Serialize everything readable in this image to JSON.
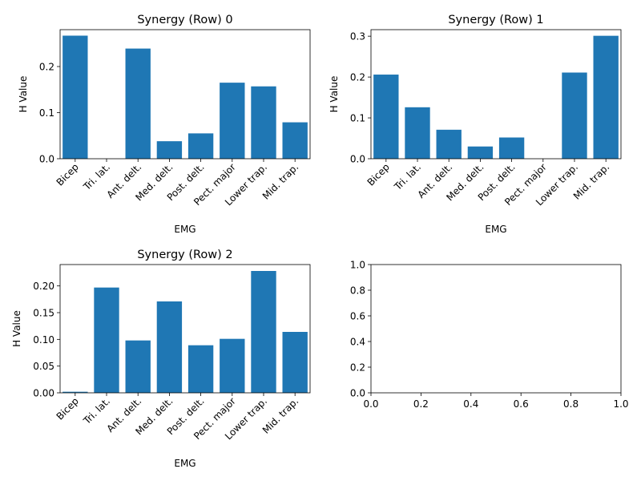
{
  "colors": {
    "bar": "#1f77b4",
    "axes": "#000000",
    "background": "#ffffff"
  },
  "chart_data": [
    {
      "type": "bar",
      "title": "Synergy (Row) 0",
      "xlabel": "EMG",
      "ylabel": "H Value",
      "categories": [
        "Bicep",
        "Tri. lat.",
        "Ant. delt.",
        "Med. delt.",
        "Post. delt.",
        "Pect. major",
        "Lower trap.",
        "Mid. trap."
      ],
      "values": [
        0.267,
        0.0,
        0.239,
        0.038,
        0.055,
        0.165,
        0.157,
        0.079
      ],
      "ylim": [
        0,
        0.28
      ],
      "yticks": [
        0.0,
        0.1,
        0.2
      ],
      "ytick_labels": [
        "0.0",
        "0.1",
        "0.2"
      ],
      "grid": false
    },
    {
      "type": "bar",
      "title": "Synergy (Row) 1",
      "xlabel": "EMG",
      "ylabel": "H Value",
      "categories": [
        "Bicep",
        "Tri. lat.",
        "Ant. delt.",
        "Med. delt.",
        "Post. delt.",
        "Pect. major",
        "Lower trap.",
        "Mid. trap."
      ],
      "values": [
        0.206,
        0.126,
        0.071,
        0.03,
        0.052,
        0.0,
        0.211,
        0.301
      ],
      "ylim": [
        0,
        0.316
      ],
      "yticks": [
        0.0,
        0.1,
        0.2,
        0.3
      ],
      "ytick_labels": [
        "0.0",
        "0.1",
        "0.2",
        "0.3"
      ],
      "grid": false
    },
    {
      "type": "bar",
      "title": "Synergy (Row) 2",
      "xlabel": "EMG",
      "ylabel": "H Value",
      "categories": [
        "Bicep",
        "Tri. lat.",
        "Ant. delt.",
        "Med. delt.",
        "Post. delt.",
        "Pect. major",
        "Lower trap.",
        "Mid. trap."
      ],
      "values": [
        0.002,
        0.197,
        0.098,
        0.171,
        0.089,
        0.101,
        0.228,
        0.114
      ],
      "ylim": [
        0,
        0.24
      ],
      "yticks": [
        0.0,
        0.05,
        0.1,
        0.15,
        0.2
      ],
      "ytick_labels": [
        "0.00",
        "0.05",
        "0.10",
        "0.15",
        "0.20"
      ],
      "grid": false
    },
    {
      "type": "empty",
      "xlim": [
        0,
        1
      ],
      "ylim": [
        0,
        1
      ],
      "xticks": [
        0.0,
        0.2,
        0.4,
        0.6,
        0.8,
        1.0
      ],
      "xtick_labels": [
        "0.0",
        "0.2",
        "0.4",
        "0.6",
        "0.8",
        "1.0"
      ],
      "yticks": [
        0.0,
        0.2,
        0.4,
        0.6,
        0.8,
        1.0
      ],
      "ytick_labels": [
        "0.0",
        "0.2",
        "0.4",
        "0.6",
        "0.8",
        "1.0"
      ],
      "grid": false
    }
  ]
}
